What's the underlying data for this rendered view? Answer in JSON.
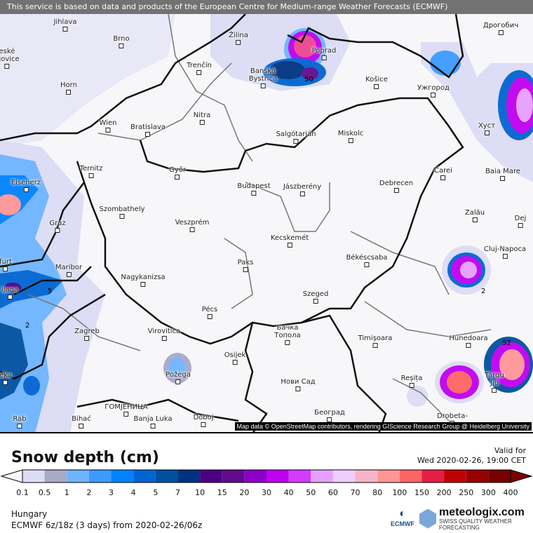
{
  "banner": "This service is based on data and products of the European Centre for Medium-range Weather Forecasts (ECMWF)",
  "attribution": "Map data © OpenStreetMap contributors, rendering GIScience Research Group @ Heidelberg University",
  "cities": [
    "Jihlava",
    "Brno",
    "eské\nějovice",
    "Žilina",
    "Poprad",
    "Trenčín",
    "Banská\nBystrica",
    "Košice",
    "Ужгород",
    "Дрогобич",
    "Horn",
    "Wien",
    "Bratislava",
    "Nitra",
    "Salgótarján",
    "Miskolc",
    "Хуст",
    "Ternitz",
    "Eisenerz",
    "Győr",
    "Budapest",
    "Jászberény",
    "Debrecen",
    "Carei",
    "Baia Mare",
    "Szombathely",
    "Veszprém",
    "Zalău",
    "Dej",
    "Graz",
    "Kecskemét",
    "Cluj-Napoca",
    "Békéscsaba",
    "furt",
    "Maribor",
    "Paks",
    "Nagykanizsa",
    "ljana",
    "Szeged",
    "Pécs",
    "Zagreb",
    "Virovitica",
    "Бачка\nТопола",
    "Timișoara",
    "Hunedoara",
    "Osijek",
    "Požega",
    "eka",
    "Reșița",
    "Нови Сад",
    "Târgu\nJiu",
    "ГОМЈЕНИЦА",
    "Београд",
    "Bihać",
    "Banja Luka",
    "Doboj",
    "Rab",
    "Drobeta-"
  ],
  "contour_labels": [
    "2",
    "5",
    "2",
    "52",
    "50"
  ],
  "legend": {
    "title": "Snow depth (cm)",
    "valid_label": "Valid for",
    "valid_time": "Wed 2020-02-26, 19:00 CET",
    "ticks": [
      "0.1",
      "0.5",
      "1",
      "2",
      "3",
      "4",
      "5",
      "7",
      "10",
      "15",
      "20",
      "30",
      "40",
      "50",
      "60",
      "70",
      "80",
      "100",
      "150",
      "200",
      "250",
      "300",
      "400"
    ],
    "colors": [
      "#dcdcf5",
      "#a9a9c8",
      "#6eb4ff",
      "#3c9bff",
      "#0082ff",
      "#0064d2",
      "#0050a0",
      "#003280",
      "#4b0082",
      "#640a8c",
      "#8c00c8",
      "#c000f0",
      "#d23cff",
      "#e6a0ff",
      "#f0cdff",
      "#f5b4c8",
      "#ff9696",
      "#ff6464",
      "#e61e46",
      "#c00000",
      "#960000",
      "#780000"
    ],
    "below_color": "#f8f8f8"
  },
  "footer": {
    "region": "Hungary",
    "model": "ECMWF 6z/18z (3 days) from  2020-02-26/06z",
    "ecmwf_logo": "ECMWF",
    "brand": "meteologix.com",
    "brand_tagline": "SWISS QUALITY WEATHER FORECASTING"
  }
}
